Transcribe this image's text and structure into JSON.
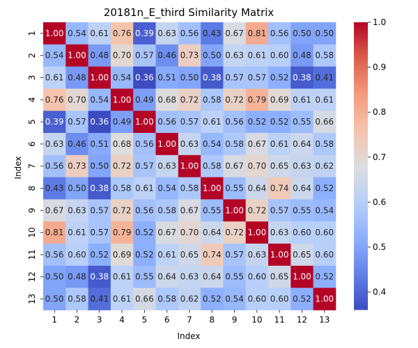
{
  "chart_data": {
    "type": "heatmap",
    "title": "20181n_E_third Similarity Matrix",
    "xlabel": "Index",
    "ylabel": "Index",
    "x_categories": [
      "1",
      "2",
      "3",
      "4",
      "5",
      "6",
      "7",
      "8",
      "9",
      "10",
      "11",
      "12",
      "13"
    ],
    "y_categories": [
      "1",
      "2",
      "3",
      "4",
      "5",
      "6",
      "7",
      "8",
      "9",
      "10",
      "11",
      "12",
      "13"
    ],
    "values": [
      [
        1.0,
        0.54,
        0.61,
        0.76,
        0.39,
        0.63,
        0.56,
        0.43,
        0.67,
        0.81,
        0.56,
        0.5,
        0.5
      ],
      [
        0.54,
        1.0,
        0.48,
        0.7,
        0.57,
        0.46,
        0.73,
        0.5,
        0.63,
        0.61,
        0.6,
        0.48,
        0.58
      ],
      [
        0.61,
        0.48,
        1.0,
        0.54,
        0.36,
        0.51,
        0.5,
        0.38,
        0.57,
        0.57,
        0.52,
        0.38,
        0.41
      ],
      [
        0.76,
        0.7,
        0.54,
        1.0,
        0.49,
        0.68,
        0.72,
        0.58,
        0.72,
        0.79,
        0.69,
        0.61,
        0.61
      ],
      [
        0.39,
        0.57,
        0.36,
        0.49,
        1.0,
        0.56,
        0.57,
        0.61,
        0.56,
        0.52,
        0.52,
        0.55,
        0.66
      ],
      [
        0.63,
        0.46,
        0.51,
        0.68,
        0.56,
        1.0,
        0.63,
        0.54,
        0.58,
        0.67,
        0.61,
        0.64,
        0.58
      ],
      [
        0.56,
        0.73,
        0.5,
        0.72,
        0.57,
        0.63,
        1.0,
        0.58,
        0.67,
        0.7,
        0.65,
        0.63,
        0.62
      ],
      [
        0.43,
        0.5,
        0.38,
        0.58,
        0.61,
        0.54,
        0.58,
        1.0,
        0.55,
        0.64,
        0.74,
        0.64,
        0.52
      ],
      [
        0.67,
        0.63,
        0.57,
        0.72,
        0.56,
        0.58,
        0.67,
        0.55,
        1.0,
        0.72,
        0.57,
        0.55,
        0.54
      ],
      [
        0.81,
        0.61,
        0.57,
        0.79,
        0.52,
        0.67,
        0.7,
        0.64,
        0.72,
        1.0,
        0.63,
        0.6,
        0.6
      ],
      [
        0.56,
        0.6,
        0.52,
        0.69,
        0.52,
        0.61,
        0.65,
        0.74,
        0.57,
        0.63,
        1.0,
        0.65,
        0.6
      ],
      [
        0.5,
        0.48,
        0.38,
        0.61,
        0.55,
        0.64,
        0.63,
        0.64,
        0.55,
        0.6,
        0.65,
        1.0,
        0.52
      ],
      [
        0.5,
        0.58,
        0.41,
        0.61,
        0.66,
        0.58,
        0.62,
        0.52,
        0.54,
        0.6,
        0.6,
        0.52,
        1.0
      ]
    ],
    "color_scale": {
      "name": "coolwarm",
      "vmin": 0.36,
      "vmax": 1.0,
      "ticks": [
        "0.4",
        "0.5",
        "0.6",
        "0.7",
        "0.8",
        "0.9",
        "1.0"
      ]
    },
    "value_format": "2 decimals"
  }
}
